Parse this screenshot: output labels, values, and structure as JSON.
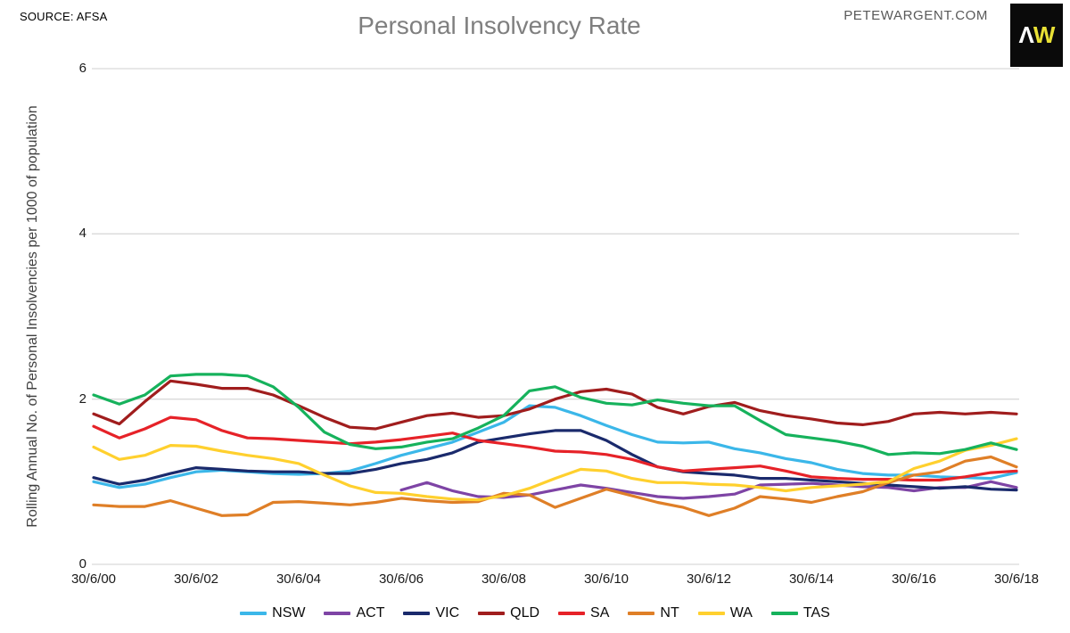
{
  "header": {
    "source_label": "SOURCE: AFSA",
    "title": "Personal Insolvency Rate",
    "website": "PETEWARGENT.COM",
    "logo_letter_1": "Λ",
    "logo_letter_2": "W"
  },
  "chart_data": {
    "type": "line",
    "title": "Personal Insolvency Rate",
    "xlabel": "",
    "ylabel": "Rolling Annual No. of Personal Insolvencies per 1000 of population",
    "ylim": [
      0,
      6
    ],
    "yticks": [
      0,
      2,
      4,
      6
    ],
    "xtick_labels": [
      "30/6/00",
      "30/6/02",
      "30/6/04",
      "30/6/06",
      "30/6/08",
      "30/6/10",
      "30/6/12",
      "30/6/14",
      "30/6/16",
      "30/6/18"
    ],
    "x_start_year": 2000,
    "x_end_year": 2018,
    "x_step_years": 0.5,
    "grid": "horizontal-only",
    "grid_color": "#d9d9d9",
    "legend_position": "bottom",
    "series": [
      {
        "name": "NSW",
        "color": "#3bb7e9",
        "start_year": 2000,
        "values": [
          1.0,
          0.93,
          0.97,
          1.05,
          1.12,
          1.14,
          1.12,
          1.1,
          1.09,
          1.1,
          1.13,
          1.22,
          1.32,
          1.4,
          1.48,
          1.6,
          1.72,
          1.92,
          1.9,
          1.8,
          1.68,
          1.57,
          1.48,
          1.47,
          1.48,
          1.4,
          1.35,
          1.28,
          1.23,
          1.15,
          1.1,
          1.08,
          1.08,
          1.06,
          1.05,
          1.04,
          1.11
        ]
      },
      {
        "name": "ACT",
        "color": "#7e44a5",
        "start_year": 2006,
        "values": [
          0.9,
          0.99,
          0.89,
          0.82,
          0.81,
          0.84,
          0.9,
          0.96,
          0.92,
          0.87,
          0.82,
          0.8,
          0.82,
          0.85,
          0.96,
          0.97,
          0.98,
          0.96,
          0.94,
          0.93,
          0.89,
          0.93,
          0.93,
          1.0,
          0.93
        ]
      },
      {
        "name": "VIC",
        "color": "#1a2a6c",
        "start_year": 2000,
        "values": [
          1.05,
          0.97,
          1.02,
          1.1,
          1.17,
          1.15,
          1.13,
          1.12,
          1.12,
          1.1,
          1.1,
          1.15,
          1.22,
          1.27,
          1.35,
          1.48,
          1.53,
          1.58,
          1.62,
          1.62,
          1.5,
          1.33,
          1.18,
          1.12,
          1.1,
          1.08,
          1.04,
          1.04,
          1.02,
          1.0,
          0.98,
          0.96,
          0.94,
          0.92,
          0.94,
          0.91,
          0.9
        ]
      },
      {
        "name": "QLD",
        "color": "#a01d1d",
        "start_year": 2000,
        "values": [
          1.82,
          1.7,
          1.97,
          2.22,
          2.18,
          2.13,
          2.13,
          2.05,
          1.92,
          1.78,
          1.66,
          1.64,
          1.72,
          1.8,
          1.83,
          1.78,
          1.8,
          1.88,
          2.0,
          2.09,
          2.12,
          2.06,
          1.9,
          1.82,
          1.91,
          1.96,
          1.86,
          1.8,
          1.76,
          1.71,
          1.69,
          1.73,
          1.82,
          1.84,
          1.82,
          1.84,
          1.82
        ]
      },
      {
        "name": "SA",
        "color": "#e62228",
        "start_year": 2000,
        "values": [
          1.67,
          1.53,
          1.64,
          1.78,
          1.75,
          1.62,
          1.53,
          1.52,
          1.5,
          1.48,
          1.46,
          1.48,
          1.51,
          1.55,
          1.59,
          1.5,
          1.46,
          1.42,
          1.37,
          1.36,
          1.33,
          1.27,
          1.18,
          1.13,
          1.15,
          1.17,
          1.19,
          1.13,
          1.06,
          1.04,
          1.03,
          1.03,
          1.02,
          1.02,
          1.06,
          1.11,
          1.13
        ]
      },
      {
        "name": "NT",
        "color": "#df7f27",
        "start_year": 2000,
        "values": [
          0.72,
          0.7,
          0.7,
          0.77,
          0.68,
          0.59,
          0.6,
          0.75,
          0.76,
          0.74,
          0.72,
          0.75,
          0.8,
          0.77,
          0.75,
          0.76,
          0.86,
          0.84,
          0.69,
          0.8,
          0.91,
          0.83,
          0.75,
          0.69,
          0.59,
          0.68,
          0.82,
          0.79,
          0.75,
          0.82,
          0.88,
          0.99,
          1.08,
          1.12,
          1.25,
          1.3,
          1.18
        ]
      },
      {
        "name": "WA",
        "color": "#ffd02e",
        "start_year": 2000,
        "values": [
          1.42,
          1.27,
          1.32,
          1.44,
          1.43,
          1.37,
          1.32,
          1.28,
          1.22,
          1.08,
          0.95,
          0.87,
          0.86,
          0.82,
          0.79,
          0.78,
          0.83,
          0.92,
          1.04,
          1.15,
          1.13,
          1.04,
          0.99,
          0.99,
          0.97,
          0.96,
          0.93,
          0.89,
          0.93,
          0.95,
          0.97,
          1.0,
          1.16,
          1.25,
          1.38,
          1.44,
          1.52
        ]
      },
      {
        "name": "TAS",
        "color": "#16b25c",
        "start_year": 2000,
        "values": [
          2.05,
          1.94,
          2.05,
          2.28,
          2.3,
          2.3,
          2.28,
          2.15,
          1.9,
          1.6,
          1.45,
          1.4,
          1.42,
          1.48,
          1.52,
          1.65,
          1.8,
          2.1,
          2.15,
          2.02,
          1.95,
          1.93,
          1.99,
          1.95,
          1.92,
          1.92,
          1.74,
          1.57,
          1.53,
          1.49,
          1.43,
          1.33,
          1.35,
          1.34,
          1.39,
          1.47,
          1.39
        ]
      }
    ]
  }
}
